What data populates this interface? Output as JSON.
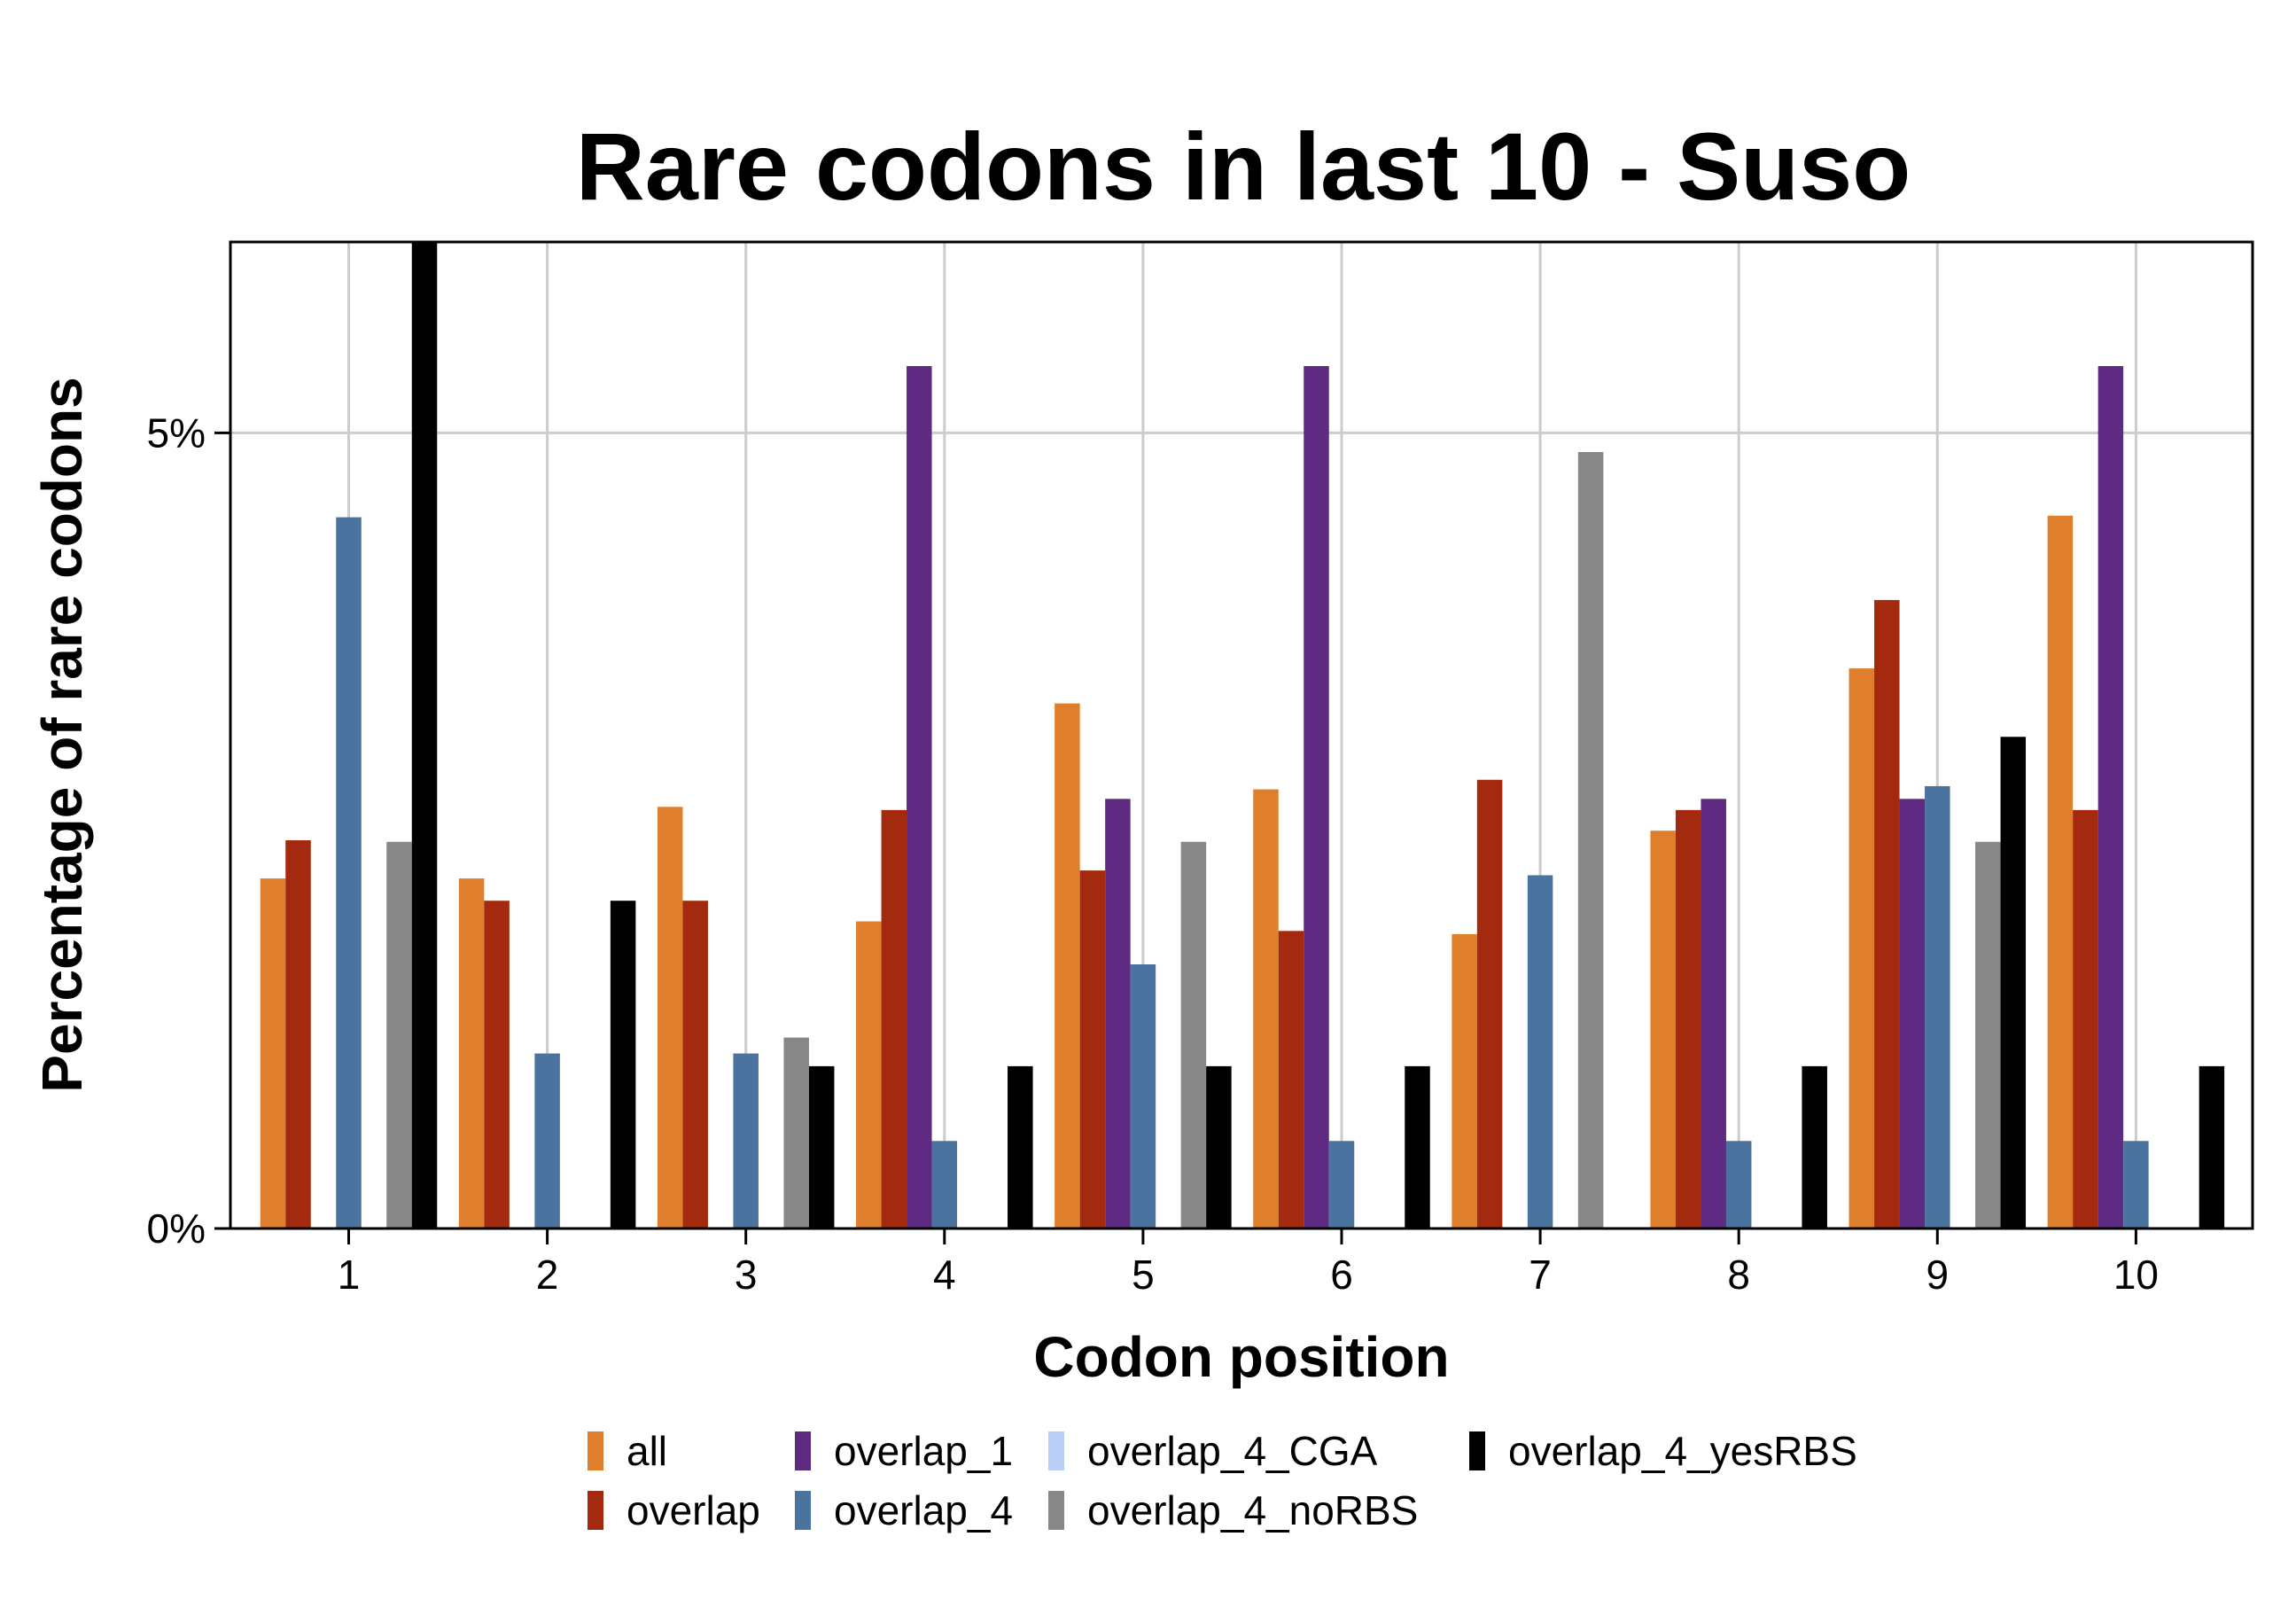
{
  "chart_data": {
    "type": "bar",
    "title": "Rare codons in last 10 - Suso",
    "xlabel": "Codon position",
    "ylabel": "Percentage of rare codons",
    "categories": [
      "1",
      "2",
      "3",
      "4",
      "5",
      "6",
      "7",
      "8",
      "9",
      "10"
    ],
    "y_ticks": [
      {
        "value": 0,
        "label": "0%"
      },
      {
        "value": 5,
        "label": "5%"
      }
    ],
    "ylim": [
      0,
      6.2
    ],
    "grid": true,
    "legend_position": "bottom",
    "series": [
      {
        "name": "all",
        "color": "#E07F2B",
        "values": [
          2.2,
          2.2,
          2.65,
          1.93,
          3.3,
          2.76,
          1.85,
          2.5,
          3.52,
          4.48
        ]
      },
      {
        "name": "overlap",
        "color": "#A32A0E",
        "values": [
          2.44,
          2.06,
          2.06,
          2.63,
          2.25,
          1.87,
          2.82,
          2.63,
          3.95,
          2.63
        ]
      },
      {
        "name": "overlap_1",
        "color": "#5E2A82",
        "values": [
          0,
          0,
          0,
          5.42,
          2.7,
          5.42,
          0,
          2.7,
          2.7,
          5.42
        ]
      },
      {
        "name": "overlap_4",
        "color": "#4A739F",
        "values": [
          4.47,
          1.1,
          1.1,
          0.55,
          1.66,
          0.55,
          2.22,
          0.55,
          2.78,
          0.55
        ]
      },
      {
        "name": "overlap_4_CGA",
        "color": "#B9CFF5",
        "values": [
          0,
          0,
          0,
          0,
          0,
          0,
          0,
          0,
          0,
          0
        ]
      },
      {
        "name": "overlap_4_noRBS",
        "color": "#878787",
        "values": [
          2.43,
          0,
          1.2,
          0,
          2.43,
          0,
          4.88,
          0,
          2.43,
          0
        ]
      },
      {
        "name": "overlap_4_yesRBS",
        "color": "#000000",
        "values": [
          6.2,
          2.06,
          1.02,
          1.02,
          1.02,
          1.02,
          0,
          1.02,
          3.09,
          1.02
        ]
      }
    ]
  }
}
